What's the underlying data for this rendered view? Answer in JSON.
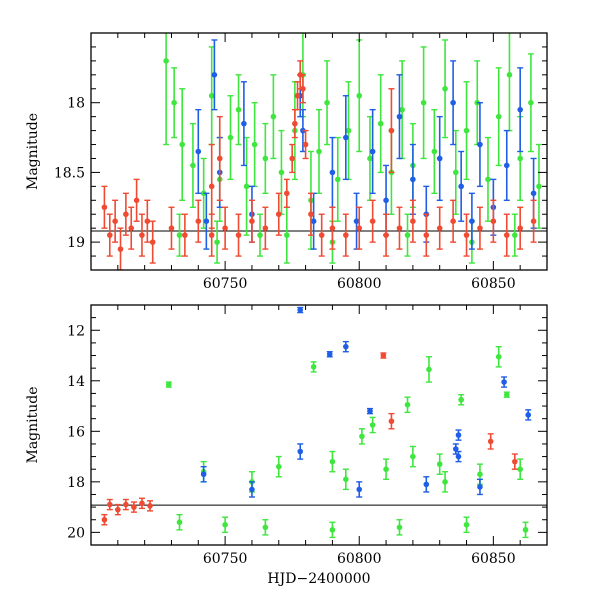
{
  "chart_data": [
    {
      "type": "scatter",
      "panel": "top",
      "title": "",
      "xlabel": "",
      "ylabel": "Magnitude",
      "xlim": [
        60700,
        60870
      ],
      "ylim": [
        19.2,
        17.5
      ],
      "y_inverted": true,
      "grid": false,
      "x_ticks": [
        60750,
        60800,
        60850
      ],
      "x_tick_labels": [
        "60750",
        "60800",
        "60850"
      ],
      "y_ticks": [
        18,
        18.5,
        19
      ],
      "y_tick_labels": [
        "18",
        "18.5",
        "19"
      ],
      "baseline": 18.92,
      "colors": {
        "green": "#3ee63e",
        "blue": "#1f5ee6",
        "red": "#f04a32"
      },
      "series": [
        {
          "color": "green",
          "points": [
            [
              60728,
              17.7,
              0.6
            ],
            [
              60731,
              18.0,
              0.25
            ],
            [
              60734,
              18.3,
              0.4
            ],
            [
              60738,
              18.45,
              0.3
            ],
            [
              60742,
              18.65,
              0.25
            ],
            [
              60745,
              17.95,
              0.35
            ],
            [
              60748,
              18.55,
              0.3
            ],
            [
              60752,
              18.25,
              0.3
            ],
            [
              60755,
              18.05,
              0.25
            ],
            [
              60758,
              18.6,
              0.35
            ],
            [
              60761,
              18.3,
              0.3
            ],
            [
              60765,
              18.4,
              0.25
            ],
            [
              60768,
              18.1,
              0.3
            ],
            [
              60771,
              18.5,
              0.3
            ],
            [
              60773,
              18.95,
              0.2
            ],
            [
              60776,
              18.2,
              0.35
            ],
            [
              60779,
              17.8,
              0.3
            ],
            [
              60782,
              18.7,
              0.35
            ],
            [
              60785,
              18.35,
              0.3
            ],
            [
              60788,
              18.0,
              0.3
            ],
            [
              60792,
              18.55,
              0.3
            ],
            [
              60796,
              18.2,
              0.35
            ],
            [
              60800,
              17.95,
              0.4
            ],
            [
              60804,
              18.4,
              0.3
            ],
            [
              60808,
              18.15,
              0.35
            ],
            [
              60812,
              18.5,
              0.3
            ],
            [
              60816,
              18.05,
              0.35
            ],
            [
              60820,
              18.45,
              0.3
            ],
            [
              60824,
              18.0,
              0.4
            ],
            [
              60828,
              18.35,
              0.3
            ],
            [
              60832,
              17.9,
              0.35
            ],
            [
              60836,
              18.5,
              0.3
            ],
            [
              60840,
              18.2,
              0.35
            ],
            [
              60844,
              18.0,
              0.3
            ],
            [
              60848,
              18.55,
              0.3
            ],
            [
              60852,
              18.1,
              0.35
            ],
            [
              60856,
              17.8,
              0.4
            ],
            [
              60860,
              18.4,
              0.3
            ],
            [
              60864,
              18.0,
              0.35
            ],
            [
              60867,
              18.6,
              0.3
            ],
            [
              60733,
              18.95,
              0.15
            ],
            [
              60747,
              19.0,
              0.15
            ],
            [
              60763,
              18.95,
              0.15
            ],
            [
              60790,
              19.0,
              0.15
            ],
            [
              60818,
              18.95,
              0.15
            ],
            [
              60842,
              19.0,
              0.15
            ],
            [
              60858,
              18.95,
              0.15
            ]
          ]
        },
        {
          "color": "blue",
          "points": [
            [
              60740,
              18.35,
              0.3
            ],
            [
              60743,
              18.85,
              0.2
            ],
            [
              60748,
              18.5,
              0.25
            ],
            [
              60757,
              18.15,
              0.3
            ],
            [
              60760,
              18.8,
              0.2
            ],
            [
              60778,
              17.95,
              0.15
            ],
            [
              60779,
              18.2,
              0.15
            ],
            [
              60783,
              18.85,
              0.2
            ],
            [
              60790,
              18.5,
              0.25
            ],
            [
              60795,
              18.25,
              0.3
            ],
            [
              60799,
              18.85,
              0.2
            ],
            [
              60805,
              18.35,
              0.3
            ],
            [
              60810,
              18.7,
              0.25
            ],
            [
              60815,
              18.1,
              0.3
            ],
            [
              60820,
              18.55,
              0.25
            ],
            [
              60825,
              18.8,
              0.2
            ],
            [
              60830,
              18.4,
              0.3
            ],
            [
              60835,
              18.0,
              0.3
            ],
            [
              60838,
              18.6,
              0.25
            ],
            [
              60842,
              18.85,
              0.2
            ],
            [
              60845,
              18.3,
              0.3
            ],
            [
              60850,
              18.75,
              0.2
            ],
            [
              60855,
              18.45,
              0.25
            ],
            [
              60860,
              18.05,
              0.3
            ],
            [
              60865,
              18.65,
              0.25
            ],
            [
              60746,
              17.8,
              0.25
            ]
          ]
        },
        {
          "color": "red",
          "points": [
            [
              60705,
              18.75,
              0.15
            ],
            [
              60707,
              18.95,
              0.15
            ],
            [
              60709,
              18.85,
              0.15
            ],
            [
              60711,
              19.05,
              0.15
            ],
            [
              60713,
              18.8,
              0.15
            ],
            [
              60715,
              18.9,
              0.15
            ],
            [
              60717,
              18.7,
              0.15
            ],
            [
              60719,
              18.95,
              0.15
            ],
            [
              60721,
              18.85,
              0.15
            ],
            [
              60723,
              19.0,
              0.15
            ],
            [
              60730,
              18.9,
              0.15
            ],
            [
              60735,
              18.95,
              0.15
            ],
            [
              60740,
              18.85,
              0.15
            ],
            [
              60745,
              18.95,
              0.15
            ],
            [
              60750,
              18.9,
              0.15
            ],
            [
              60755,
              18.95,
              0.15
            ],
            [
              60760,
              18.85,
              0.15
            ],
            [
              60765,
              18.9,
              0.15
            ],
            [
              60770,
              18.8,
              0.15
            ],
            [
              60773,
              18.65,
              0.1
            ],
            [
              60775,
              18.4,
              0.1
            ],
            [
              60776,
              18.15,
              0.1
            ],
            [
              60777,
              17.95,
              0.1
            ],
            [
              60778,
              17.8,
              0.1
            ],
            [
              60779,
              17.9,
              0.1
            ],
            [
              60780,
              18.3,
              0.1
            ],
            [
              60782,
              18.8,
              0.15
            ],
            [
              60786,
              18.95,
              0.15
            ],
            [
              60790,
              18.9,
              0.15
            ],
            [
              60795,
              18.95,
              0.15
            ],
            [
              60800,
              18.9,
              0.15
            ],
            [
              60805,
              18.85,
              0.15
            ],
            [
              60810,
              18.95,
              0.15
            ],
            [
              60815,
              18.9,
              0.15
            ],
            [
              60820,
              18.85,
              0.15
            ],
            [
              60825,
              18.95,
              0.15
            ],
            [
              60830,
              18.9,
              0.15
            ],
            [
              60835,
              18.85,
              0.15
            ],
            [
              60840,
              18.95,
              0.15
            ],
            [
              60845,
              18.9,
              0.15
            ],
            [
              60850,
              18.85,
              0.15
            ],
            [
              60855,
              18.95,
              0.15
            ],
            [
              60860,
              18.9,
              0.15
            ],
            [
              60865,
              18.85,
              0.15
            ],
            [
              60748,
              18.4,
              0.3
            ],
            [
              60745,
              18.6,
              0.3
            ],
            [
              60812,
              18.2,
              0.3
            ]
          ]
        }
      ]
    },
    {
      "type": "scatter",
      "panel": "bottom",
      "title": "",
      "xlabel": "HJD−2400000",
      "ylabel": "Magnitude",
      "xlim": [
        60700,
        60870
      ],
      "ylim": [
        20.5,
        11
      ],
      "y_inverted": true,
      "grid": false,
      "x_ticks": [
        60750,
        60800,
        60850
      ],
      "x_tick_labels": [
        "60750",
        "60800",
        "60850"
      ],
      "y_ticks": [
        12,
        14,
        16,
        18,
        20
      ],
      "y_tick_labels": [
        "12",
        "14",
        "16",
        "18",
        "20"
      ],
      "baseline": 18.92,
      "colors": {
        "green": "#3ee63e",
        "blue": "#1f5ee6",
        "red": "#f04a32"
      },
      "series": [
        {
          "color": "green",
          "points": [
            [
              60729,
              14.15,
              0.1
            ],
            [
              60783,
              13.45,
              0.2
            ],
            [
              60801,
              16.2,
              0.3
            ],
            [
              60805,
              15.75,
              0.3
            ],
            [
              60818,
              14.95,
              0.3
            ],
            [
              60826,
              13.55,
              0.5
            ],
            [
              60832,
              18.0,
              0.4
            ],
            [
              60838,
              14.75,
              0.2
            ],
            [
              60852,
              13.05,
              0.4
            ],
            [
              60855,
              14.55,
              0.1
            ],
            [
              60742,
              17.6,
              0.4
            ],
            [
              60760,
              18.0,
              0.4
            ],
            [
              60770,
              17.4,
              0.4
            ],
            [
              60790,
              17.2,
              0.4
            ],
            [
              60795,
              17.9,
              0.4
            ],
            [
              60810,
              17.5,
              0.4
            ],
            [
              60820,
              17.0,
              0.4
            ],
            [
              60830,
              17.3,
              0.4
            ],
            [
              60845,
              17.7,
              0.4
            ],
            [
              60860,
              17.5,
              0.4
            ],
            [
              60733,
              19.6,
              0.3
            ],
            [
              60750,
              19.7,
              0.3
            ],
            [
              60765,
              19.8,
              0.3
            ],
            [
              60790,
              19.9,
              0.3
            ],
            [
              60815,
              19.8,
              0.3
            ],
            [
              60840,
              19.7,
              0.3
            ],
            [
              60862,
              19.9,
              0.3
            ]
          ]
        },
        {
          "color": "blue",
          "points": [
            [
              60778,
              11.2,
              0.1
            ],
            [
              60789,
              12.95,
              0.1
            ],
            [
              60795,
              12.65,
              0.2
            ],
            [
              60804,
              15.2,
              0.1
            ],
            [
              60837,
              16.15,
              0.2
            ],
            [
              60836,
              16.7,
              0.2
            ],
            [
              60837,
              17.0,
              0.2
            ],
            [
              60854,
              14.05,
              0.2
            ],
            [
              60863,
              15.35,
              0.2
            ],
            [
              60778,
              16.8,
              0.3
            ],
            [
              60742,
              17.7,
              0.3
            ],
            [
              60760,
              18.3,
              0.3
            ],
            [
              60800,
              18.3,
              0.3
            ],
            [
              60825,
              18.1,
              0.3
            ],
            [
              60845,
              18.2,
              0.3
            ]
          ]
        },
        {
          "color": "red",
          "points": [
            [
              60809,
              13.0,
              0.1
            ],
            [
              60812,
              15.6,
              0.3
            ],
            [
              60849,
              16.4,
              0.3
            ],
            [
              60858,
              17.2,
              0.3
            ],
            [
              60705,
              19.5,
              0.2
            ],
            [
              60707,
              18.9,
              0.2
            ],
            [
              60710,
              19.1,
              0.2
            ],
            [
              60713,
              18.9,
              0.2
            ],
            [
              60716,
              19.0,
              0.2
            ],
            [
              60719,
              18.85,
              0.2
            ],
            [
              60722,
              18.95,
              0.2
            ]
          ]
        }
      ]
    }
  ]
}
